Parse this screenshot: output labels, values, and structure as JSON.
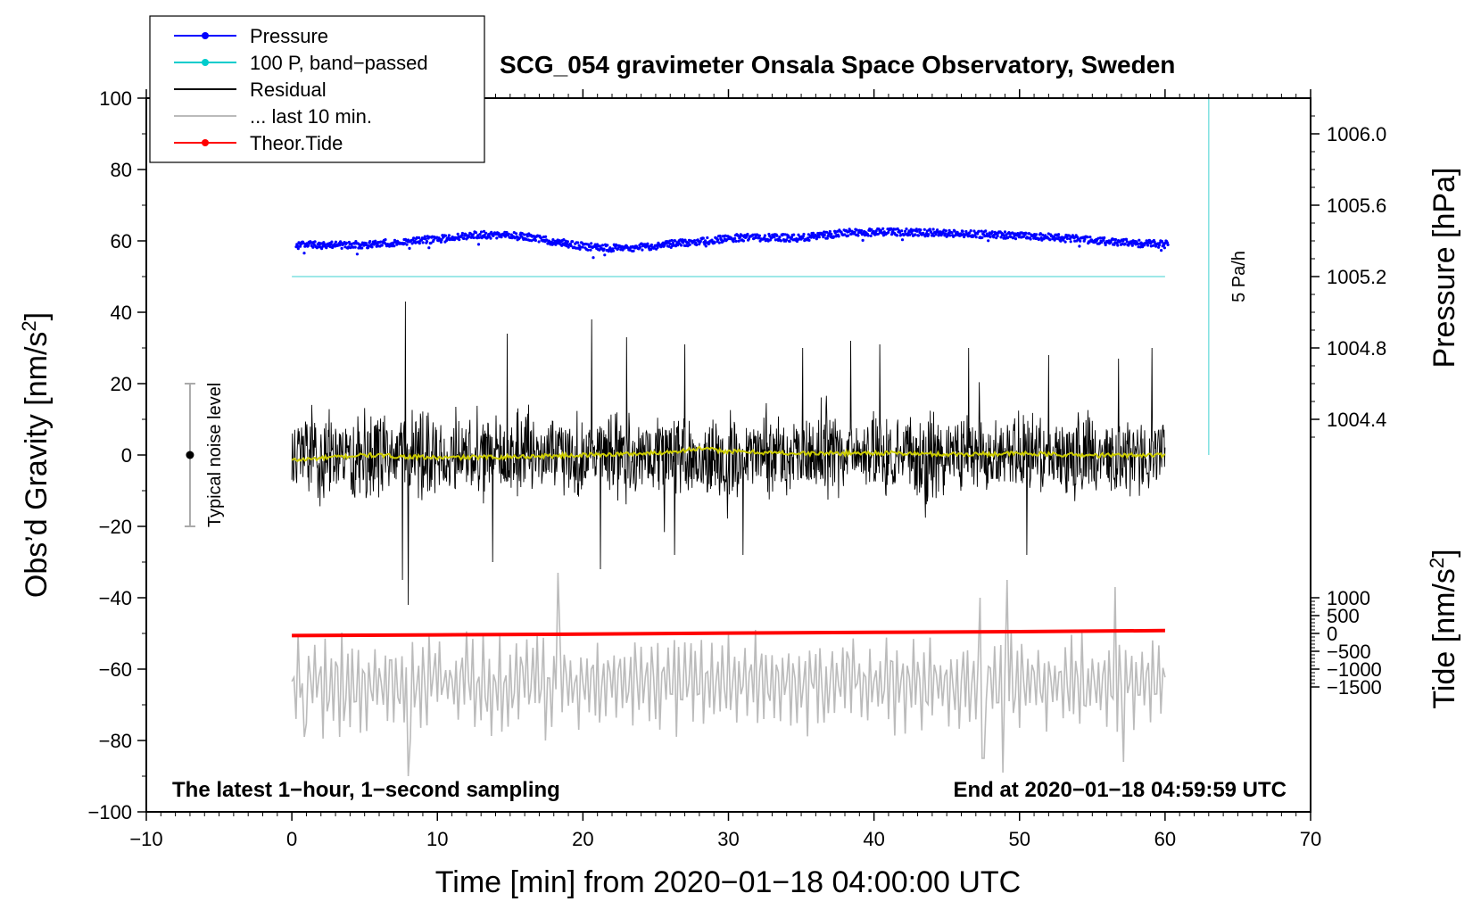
{
  "chart_data": {
    "type": "line",
    "title": "SCG_054 gravimeter Onsala Space Observatory, Sweden",
    "xlabel": "Time [min] from 2020−01−18 04:00:00 UTC",
    "ylabel": "Obs’d Gravity [nm/s",
    "ylabel_sup": "2",
    "ylabel_end": "]",
    "xlim": [
      -10,
      70
    ],
    "ylim": [
      -100,
      100
    ],
    "x_ticks": [
      "−10",
      "0",
      "10",
      "20",
      "30",
      "40",
      "50",
      "60",
      "70"
    ],
    "x_tick_values": [
      -10,
      0,
      10,
      20,
      30,
      40,
      50,
      60,
      70
    ],
    "y_ticks": [
      "−100",
      "−80",
      "−60",
      "−40",
      "−20",
      "0",
      "20",
      "40",
      "60",
      "80",
      "100"
    ],
    "y_tick_values": [
      -100,
      -80,
      -60,
      -40,
      -20,
      0,
      20,
      40,
      60,
      80,
      100
    ],
    "pressure_axis": {
      "label": "Pressure [hPa]",
      "ticks": [
        "1004.4",
        "1004.8",
        "1005.2",
        "1005.6",
        "1006.0"
      ],
      "tick_values": [
        1004.4,
        1004.8,
        1005.2,
        1005.6,
        1006.0
      ],
      "gravity_at_1005_2": 50,
      "gravity_per_hPa": 50
    },
    "tide_axis": {
      "label": "Tide [nm/s",
      "label_sup": "2",
      "label_end": "]",
      "ticks": [
        "−1500",
        "−1000",
        "−500",
        "0",
        "500",
        "1000"
      ],
      "tick_values": [
        -1500,
        -1000,
        -500,
        0,
        500,
        1000
      ],
      "gravity_at_0": -50,
      "gravity_per_unit": 0.01
    },
    "legend": [
      {
        "label": "Pressure",
        "color": "#0000ff",
        "style": "line-dot"
      },
      {
        "label": "100 P, band−passed",
        "color": "#00cccc",
        "style": "line-dot"
      },
      {
        "label": "Residual",
        "color": "#000000",
        "style": "line"
      },
      {
        "label": "... last 10 min.",
        "color": "#bbbbbb",
        "style": "line"
      },
      {
        "label": "Theor.Tide",
        "color": "#ff0000",
        "style": "line-dot"
      }
    ],
    "series": [
      {
        "name": "Pressure",
        "color": "#0000ff",
        "kind": "dots",
        "x": [
          0,
          5,
          10,
          13,
          16,
          20,
          23,
          27,
          31,
          35,
          38,
          42,
          46,
          50,
          54,
          57,
          60
        ],
        "y": [
          58.8,
          58.9,
          60.5,
          61.8,
          61.2,
          58.5,
          57.8,
          59.5,
          61.0,
          60.8,
          62.3,
          62.5,
          62.0,
          61.5,
          60.5,
          59.5,
          59.0
        ],
        "noise": 1.0
      },
      {
        "name": "100 P, band−passed",
        "color": "#7fe0e0",
        "kind": "line",
        "x": [
          0,
          60
        ],
        "y": [
          50,
          50
        ]
      },
      {
        "name": "Residual",
        "color": "#000000",
        "kind": "noise",
        "x_range": [
          0,
          60
        ],
        "envelope": 12,
        "spikes": [
          [
            7.8,
            43
          ],
          [
            8.0,
            -42
          ],
          [
            7.6,
            -35
          ],
          [
            20.6,
            38
          ],
          [
            21.2,
            -32
          ],
          [
            14.8,
            34
          ],
          [
            23.0,
            33
          ],
          [
            27.0,
            31
          ],
          [
            26.3,
            -28
          ],
          [
            31.0,
            -28
          ],
          [
            35.1,
            30
          ],
          [
            38.4,
            32
          ],
          [
            40.4,
            31
          ],
          [
            13.8,
            -30
          ],
          [
            50.5,
            -28
          ],
          [
            56.8,
            27
          ],
          [
            59.1,
            30
          ],
          [
            46.5,
            30
          ],
          [
            52.0,
            28
          ]
        ]
      },
      {
        "name": "smoothed residual",
        "color": "#cccc00",
        "kind": "line",
        "x": [
          0,
          5,
          10,
          15,
          20,
          25,
          28,
          30,
          35,
          40,
          45,
          50,
          55,
          60
        ],
        "y": [
          -1.5,
          0.0,
          -0.8,
          -0.5,
          0.0,
          0.5,
          1.8,
          1.0,
          0.4,
          0.6,
          0.2,
          0.4,
          -0.1,
          0.0
        ]
      },
      {
        "name": "... last 10 min.",
        "color": "#bbbbbb",
        "kind": "oscillation",
        "x_range": [
          0,
          60
        ],
        "center": -64,
        "amplitude": 10,
        "peaks": [
          [
            18.3,
            -33
          ],
          [
            17.4,
            -80
          ],
          [
            8.0,
            -90
          ],
          [
            47.5,
            -85
          ],
          [
            48.8,
            -89
          ],
          [
            49.1,
            -35
          ],
          [
            47.3,
            -40
          ],
          [
            56.6,
            -37
          ],
          [
            57.1,
            -86
          ],
          [
            3.3,
            -79
          ],
          [
            0.8,
            -79
          ]
        ]
      },
      {
        "name": "Theor.Tide",
        "color": "#ff0000",
        "kind": "line",
        "x": [
          0,
          10,
          20,
          30,
          40,
          50,
          60
        ],
        "y": [
          -50.6,
          -50.4,
          -50.2,
          -49.9,
          -49.7,
          -49.5,
          -49.2
        ]
      }
    ],
    "noise_bar": {
      "label": "Typical noise level",
      "x": -7,
      "center": 0,
      "low": -20,
      "high": 20
    },
    "rate_marker": {
      "label": "5 Pa/h",
      "x": 63,
      "y_low": 0,
      "y_high": 100,
      "color": "#7fe0e0"
    },
    "annotations": {
      "bottom_left": "The latest 1−hour, 1−second sampling",
      "bottom_right": "End at 2020−01−18 04:59:59 UTC"
    }
  }
}
